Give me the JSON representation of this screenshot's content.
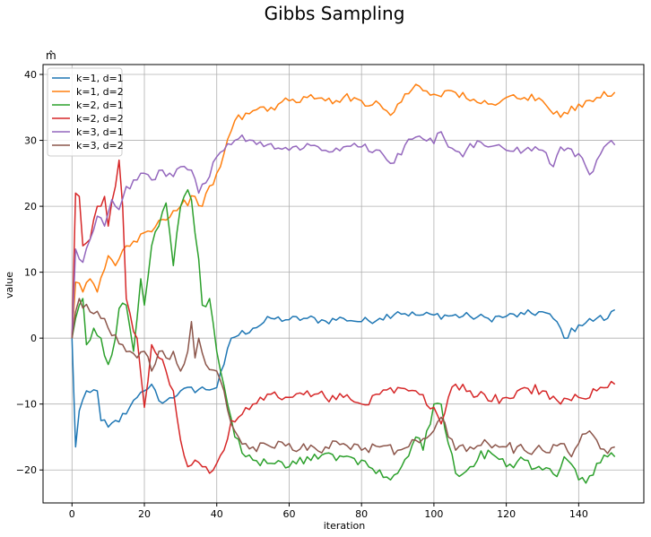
{
  "chart_data": {
    "type": "line",
    "title": "Gibbs Sampling",
    "subtitle": "m̂",
    "xlabel": "iteration",
    "ylabel": "value",
    "xlim": [
      -8,
      158
    ],
    "ylim": [
      -25,
      41.5
    ],
    "xticks": [
      0,
      20,
      40,
      60,
      80,
      100,
      120,
      140
    ],
    "yticks": [
      -20,
      -10,
      0,
      10,
      20,
      30,
      40
    ],
    "grid": true,
    "legend": "top-left",
    "series": [
      {
        "name": "k=1, d=1",
        "color": "#1f77b4",
        "anchors": [
          [
            0,
            0
          ],
          [
            1,
            -16.5
          ],
          [
            2,
            -11
          ],
          [
            4,
            -8
          ],
          [
            7,
            -8
          ],
          [
            8,
            -12.5
          ],
          [
            10,
            -13.5
          ],
          [
            15,
            -11.5
          ],
          [
            18,
            -9
          ],
          [
            20,
            -8
          ],
          [
            22,
            -7
          ],
          [
            24,
            -9.5
          ],
          [
            26,
            -9.5
          ],
          [
            30,
            -8
          ],
          [
            40,
            -7.5
          ],
          [
            42,
            -4
          ],
          [
            44,
            0
          ],
          [
            50,
            1.5
          ],
          [
            55,
            3
          ],
          [
            60,
            2.8
          ],
          [
            65,
            3
          ],
          [
            70,
            2.6
          ],
          [
            75,
            3
          ],
          [
            80,
            2.5
          ],
          [
            85,
            3
          ],
          [
            90,
            4
          ],
          [
            95,
            3.5
          ],
          [
            100,
            3.5
          ],
          [
            110,
            3.3
          ],
          [
            115,
            3
          ],
          [
            120,
            3.3
          ],
          [
            125,
            3.6
          ],
          [
            130,
            4
          ],
          [
            134,
            2.5
          ],
          [
            136,
            0
          ],
          [
            140,
            2
          ],
          [
            145,
            3
          ],
          [
            148,
            3
          ],
          [
            150,
            4.3
          ]
        ],
        "noise": 0.6
      },
      {
        "name": "k=1, d=2",
        "color": "#ff7f0e",
        "anchors": [
          [
            0,
            0
          ],
          [
            1,
            8.5
          ],
          [
            3,
            7
          ],
          [
            5,
            9
          ],
          [
            7,
            7
          ],
          [
            10,
            12.5
          ],
          [
            12,
            11
          ],
          [
            15,
            14
          ],
          [
            20,
            16
          ],
          [
            25,
            18
          ],
          [
            30,
            20
          ],
          [
            34,
            21.5
          ],
          [
            36,
            20
          ],
          [
            40,
            25
          ],
          [
            42,
            28
          ],
          [
            45,
            33
          ],
          [
            50,
            34.5
          ],
          [
            55,
            35
          ],
          [
            60,
            36
          ],
          [
            65,
            36.5
          ],
          [
            70,
            36
          ],
          [
            75,
            36.5
          ],
          [
            80,
            36
          ],
          [
            85,
            35.5
          ],
          [
            88,
            33.8
          ],
          [
            90,
            35.5
          ],
          [
            95,
            38.5
          ],
          [
            100,
            37
          ],
          [
            105,
            37.5
          ],
          [
            110,
            36
          ],
          [
            115,
            35.5
          ],
          [
            120,
            36.5
          ],
          [
            125,
            36.5
          ],
          [
            130,
            36
          ],
          [
            133,
            34
          ],
          [
            135,
            33.5
          ],
          [
            140,
            35.5
          ],
          [
            145,
            36.5
          ],
          [
            150,
            37.3
          ]
        ],
        "noise": 0.7
      },
      {
        "name": "k=2, d=1",
        "color": "#2ca02c",
        "anchors": [
          [
            0,
            0
          ],
          [
            1,
            3
          ],
          [
            2,
            5
          ],
          [
            3,
            6
          ],
          [
            4,
            -1
          ],
          [
            6,
            1.5
          ],
          [
            8,
            0
          ],
          [
            10,
            -4
          ],
          [
            12,
            0
          ],
          [
            13,
            4.5
          ],
          [
            15,
            5
          ],
          [
            17,
            -2
          ],
          [
            19,
            9
          ],
          [
            20,
            5
          ],
          [
            22,
            14
          ],
          [
            24,
            17
          ],
          [
            26,
            20.5
          ],
          [
            28,
            11
          ],
          [
            30,
            20
          ],
          [
            32,
            22.5
          ],
          [
            33,
            21
          ],
          [
            35,
            12
          ],
          [
            36,
            5
          ],
          [
            38,
            6
          ],
          [
            40,
            -2
          ],
          [
            43,
            -10
          ],
          [
            45,
            -15
          ],
          [
            48,
            -18
          ],
          [
            50,
            -18.5
          ],
          [
            55,
            -19
          ],
          [
            60,
            -19.5
          ],
          [
            65,
            -18
          ],
          [
            70,
            -17.5
          ],
          [
            75,
            -18
          ],
          [
            80,
            -18.5
          ],
          [
            85,
            -20
          ],
          [
            88,
            -21.5
          ],
          [
            90,
            -20.5
          ],
          [
            95,
            -15
          ],
          [
            97,
            -17
          ],
          [
            100,
            -10
          ],
          [
            102,
            -10
          ],
          [
            104,
            -16
          ],
          [
            106,
            -20.5
          ],
          [
            110,
            -19.5
          ],
          [
            115,
            -17
          ],
          [
            120,
            -19.5
          ],
          [
            125,
            -18.5
          ],
          [
            130,
            -20
          ],
          [
            134,
            -21
          ],
          [
            136,
            -18
          ],
          [
            140,
            -21.5
          ],
          [
            142,
            -22
          ],
          [
            145,
            -19
          ],
          [
            148,
            -18
          ],
          [
            150,
            -18
          ]
        ],
        "noise": 0.9
      },
      {
        "name": "k=2, d=2",
        "color": "#d62728",
        "anchors": [
          [
            0,
            0
          ],
          [
            1,
            22
          ],
          [
            2,
            21.5
          ],
          [
            3,
            14
          ],
          [
            5,
            15
          ],
          [
            7,
            20
          ],
          [
            9,
            21.5
          ],
          [
            10,
            17
          ],
          [
            12,
            23
          ],
          [
            13,
            27
          ],
          [
            14,
            20
          ],
          [
            15,
            6
          ],
          [
            17,
            1
          ],
          [
            18,
            0
          ],
          [
            20,
            -10.5
          ],
          [
            22,
            -1
          ],
          [
            24,
            -3
          ],
          [
            26,
            -5
          ],
          [
            28,
            -8
          ],
          [
            30,
            -15.5
          ],
          [
            32,
            -19.5
          ],
          [
            34,
            -18.5
          ],
          [
            36,
            -19.5
          ],
          [
            38,
            -20.5
          ],
          [
            40,
            -19
          ],
          [
            42,
            -17
          ],
          [
            44,
            -12.5
          ],
          [
            46,
            -12
          ],
          [
            50,
            -10
          ],
          [
            55,
            -8.5
          ],
          [
            60,
            -9
          ],
          [
            65,
            -8
          ],
          [
            70,
            -9
          ],
          [
            75,
            -9
          ],
          [
            80,
            -10
          ],
          [
            85,
            -8.5
          ],
          [
            90,
            -7.5
          ],
          [
            95,
            -8
          ],
          [
            100,
            -10.5
          ],
          [
            102,
            -13
          ],
          [
            104,
            -9
          ],
          [
            106,
            -7
          ],
          [
            110,
            -8
          ],
          [
            115,
            -9.5
          ],
          [
            120,
            -9
          ],
          [
            125,
            -7.5
          ],
          [
            130,
            -8
          ],
          [
            135,
            -10
          ],
          [
            140,
            -9
          ],
          [
            145,
            -8
          ],
          [
            148,
            -7.5
          ],
          [
            150,
            -7
          ]
        ],
        "noise": 0.8
      },
      {
        "name": "k=3, d=1",
        "color": "#9467bd",
        "anchors": [
          [
            0,
            0
          ],
          [
            1,
            13.5
          ],
          [
            2,
            12
          ],
          [
            3,
            11.5
          ],
          [
            5,
            15
          ],
          [
            7,
            18.5
          ],
          [
            9,
            17
          ],
          [
            11,
            21
          ],
          [
            13,
            19.5
          ],
          [
            15,
            23
          ],
          [
            18,
            24
          ],
          [
            20,
            25
          ],
          [
            22,
            24
          ],
          [
            25,
            25.5
          ],
          [
            28,
            24.5
          ],
          [
            30,
            26
          ],
          [
            33,
            25.5
          ],
          [
            35,
            22
          ],
          [
            38,
            24.5
          ],
          [
            40,
            27.5
          ],
          [
            42,
            28.5
          ],
          [
            45,
            30
          ],
          [
            47,
            30.8
          ],
          [
            50,
            30
          ],
          [
            55,
            29.5
          ],
          [
            60,
            28.5
          ],
          [
            65,
            29.5
          ],
          [
            70,
            28.5
          ],
          [
            75,
            29
          ],
          [
            80,
            29
          ],
          [
            85,
            28.5
          ],
          [
            88,
            26.5
          ],
          [
            90,
            28
          ],
          [
            95,
            30.5
          ],
          [
            100,
            29.5
          ],
          [
            102,
            31.3
          ],
          [
            104,
            29
          ],
          [
            108,
            27.5
          ],
          [
            110,
            29.5
          ],
          [
            115,
            29
          ],
          [
            120,
            28.5
          ],
          [
            125,
            28.5
          ],
          [
            130,
            28.5
          ],
          [
            133,
            26
          ],
          [
            135,
            29
          ],
          [
            140,
            28
          ],
          [
            142,
            26
          ],
          [
            143,
            24.8
          ],
          [
            145,
            27
          ],
          [
            148,
            29.5
          ],
          [
            150,
            29.3
          ]
        ],
        "noise": 0.7
      },
      {
        "name": "k=3, d=2",
        "color": "#8c564b",
        "anchors": [
          [
            0,
            0
          ],
          [
            1,
            4
          ],
          [
            2,
            6
          ],
          [
            5,
            4
          ],
          [
            8,
            3
          ],
          [
            10,
            1.5
          ],
          [
            12,
            0.5
          ],
          [
            14,
            -1
          ],
          [
            16,
            -2
          ],
          [
            18,
            -3
          ],
          [
            20,
            -2
          ],
          [
            22,
            -5
          ],
          [
            24,
            -2
          ],
          [
            26,
            -3
          ],
          [
            28,
            -2
          ],
          [
            30,
            -5
          ],
          [
            32,
            -2
          ],
          [
            33,
            2.5
          ],
          [
            34,
            -3
          ],
          [
            35,
            0
          ],
          [
            37,
            -4
          ],
          [
            40,
            -5
          ],
          [
            42,
            -8
          ],
          [
            44,
            -13
          ],
          [
            46,
            -15
          ],
          [
            48,
            -16
          ],
          [
            50,
            -16.5
          ],
          [
            55,
            -16.5
          ],
          [
            60,
            -16
          ],
          [
            65,
            -17
          ],
          [
            70,
            -16.5
          ],
          [
            75,
            -16
          ],
          [
            80,
            -17
          ],
          [
            85,
            -16.5
          ],
          [
            90,
            -17
          ],
          [
            95,
            -15.5
          ],
          [
            100,
            -14
          ],
          [
            102,
            -12
          ],
          [
            104,
            -15
          ],
          [
            106,
            -17
          ],
          [
            110,
            -16.5
          ],
          [
            115,
            -16
          ],
          [
            120,
            -16.5
          ],
          [
            125,
            -17
          ],
          [
            130,
            -17
          ],
          [
            135,
            -16
          ],
          [
            138,
            -18
          ],
          [
            140,
            -16
          ],
          [
            142,
            -14.5
          ],
          [
            145,
            -15.5
          ],
          [
            148,
            -17.5
          ],
          [
            150,
            -16.5
          ]
        ],
        "noise": 0.8
      }
    ]
  }
}
